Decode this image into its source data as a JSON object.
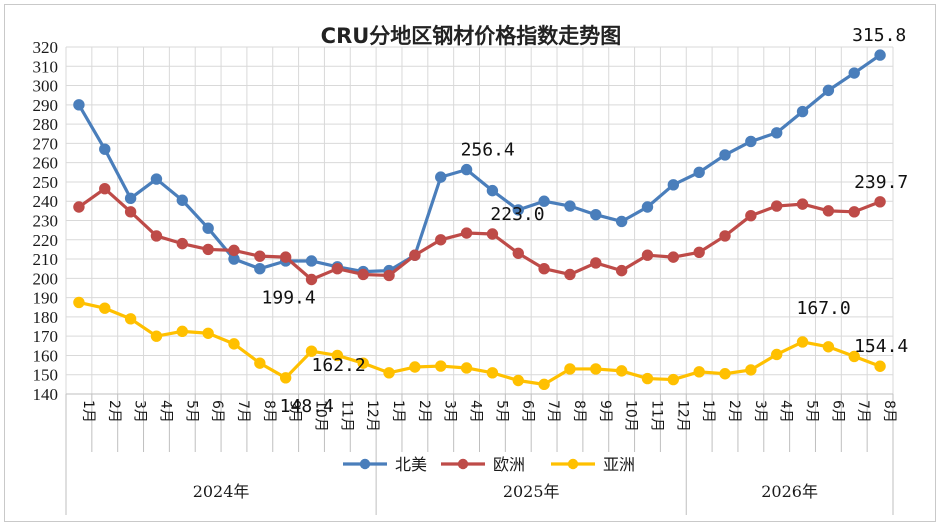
{
  "chart_data": {
    "type": "line",
    "title": "CRU分地区钢材价格指数走势图",
    "ylim": [
      140,
      320
    ],
    "yticks": [
      "140",
      "150",
      "160",
      "170",
      "180",
      "190",
      "200",
      "210",
      "220",
      "230",
      "240",
      "250",
      "260",
      "270",
      "280",
      "290",
      "300",
      "310",
      "320"
    ],
    "categories": [
      "1月",
      "2月",
      "3月",
      "4月",
      "5月",
      "6月",
      "7月",
      "8月",
      "9月",
      "10月",
      "11月",
      "12月",
      "1月",
      "2月",
      "3月",
      "4月",
      "5月",
      "6月",
      "7月",
      "8月",
      "9月",
      "10月",
      "11月",
      "12月",
      "1月",
      "2月",
      "3月",
      "4月",
      "5月",
      "6月",
      "7月",
      "8月"
    ],
    "year_groups": [
      {
        "label": "2024年",
        "span": 12
      },
      {
        "label": "2025年",
        "span": 12
      },
      {
        "label": "2026年",
        "span": 8
      }
    ],
    "grid": true,
    "legend_position": "bottom",
    "series": [
      {
        "name": "北美",
        "color": "#4a7ebb",
        "values": [
          290,
          267,
          241.5,
          251.5,
          240.5,
          226,
          210,
          205,
          209,
          209,
          206,
          203.5,
          204,
          212,
          252.5,
          256.4,
          245.5,
          235.5,
          240,
          237.5,
          233,
          229.5,
          237,
          248.5,
          255,
          264,
          271,
          275.5,
          286.5,
          297.5,
          306.5,
          315.8
        ]
      },
      {
        "name": "欧洲",
        "color": "#be4b48",
        "values": [
          237,
          246.5,
          234.5,
          222,
          218,
          215,
          214.5,
          211.5,
          211,
          199.4,
          205,
          202,
          201.5,
          212,
          220,
          223.5,
          223.0,
          213,
          205,
          202,
          208,
          204,
          212,
          211,
          213.5,
          222,
          232.5,
          237.5,
          238.5,
          235,
          234.5,
          239.7
        ]
      },
      {
        "name": "亚洲",
        "color": "#ffc000",
        "values": [
          187.5,
          184.5,
          179,
          170,
          172.5,
          171.5,
          166,
          156,
          148.4,
          162.2,
          160,
          156,
          151,
          154,
          154.5,
          153.5,
          151,
          147,
          145,
          153,
          153,
          152,
          148,
          147.5,
          151.5,
          150.5,
          152.5,
          160.5,
          167.0,
          164.5,
          159.5,
          154.4
        ]
      }
    ],
    "annotations": [
      {
        "text": "315.8",
        "series": 0,
        "index": 31
      },
      {
        "text": "256.4",
        "series": 0,
        "index": 15
      },
      {
        "text": "239.7",
        "series": 1,
        "index": 31
      },
      {
        "text": "223.0",
        "series": 1,
        "index": 16
      },
      {
        "text": "199.4",
        "series": 1,
        "index": 9
      },
      {
        "text": "162.2",
        "series": 2,
        "index": 9
      },
      {
        "text": "148.4",
        "series": 2,
        "index": 8
      },
      {
        "text": "167.0",
        "series": 2,
        "index": 28
      },
      {
        "text": "154.4",
        "series": 2,
        "index": 31
      }
    ]
  }
}
